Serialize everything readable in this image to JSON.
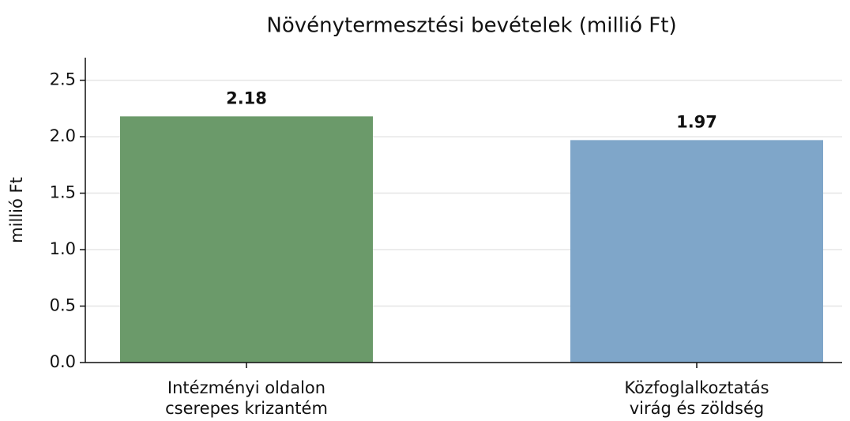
{
  "chart_data": {
    "type": "bar",
    "title": "Növénytermesztési bevételek (millió Ft)",
    "ylabel": "millió Ft",
    "categories": [
      [
        "Intézményi oldalon",
        "cserepes krizantém"
      ],
      [
        "Közfoglalkoztatás",
        "virág és zöldség"
      ]
    ],
    "values": [
      2.18,
      1.97
    ],
    "colors": [
      "#6b9a6a",
      "#7fa6c9"
    ],
    "ylim": [
      0,
      2.7
    ],
    "yticks": [
      {
        "value": 0,
        "label": "0.0"
      },
      0.5,
      {
        "value": 1,
        "label": "1.0"
      },
      1.5,
      {
        "value": 2,
        "label": "2.0"
      },
      2.5
    ],
    "grid": true
  }
}
